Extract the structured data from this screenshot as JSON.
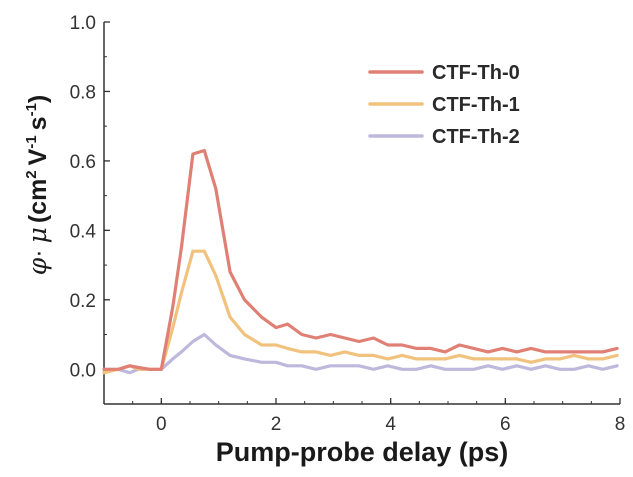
{
  "chart_data": {
    "type": "line",
    "xlabel": "Pump-probe delay (ps)",
    "ylabel": {
      "phi": "φ",
      "dot": "·",
      "mu": "μ",
      "open": "(",
      "cm": "cm",
      "cm_exp": "2",
      "v": "V",
      "v_exp": "-1",
      "s": "s",
      "s_exp": "-1",
      "close": ")"
    },
    "xlim": [
      -1,
      8
    ],
    "ylim": [
      -0.1,
      1.0
    ],
    "xticks": [
      0,
      2,
      4,
      6,
      8
    ],
    "yticks": [
      0.0,
      0.2,
      0.4,
      0.6,
      0.8,
      1.0
    ],
    "ytick_labels": [
      "0.0",
      "0.2",
      "0.4",
      "0.6",
      "0.8",
      "1.0"
    ],
    "legend_position": "top-right",
    "grid": false,
    "series": [
      {
        "name": "CTF-Th-0",
        "color": "#e08074",
        "x": [
          -1,
          -0.75,
          -0.55,
          -0.4,
          -0.2,
          0,
          0.2,
          0.35,
          0.55,
          0.75,
          0.95,
          1.2,
          1.45,
          1.75,
          2,
          2.2,
          2.45,
          2.7,
          2.95,
          3.2,
          3.45,
          3.7,
          3.95,
          4.2,
          4.45,
          4.7,
          4.95,
          5.2,
          5.45,
          5.7,
          5.95,
          6.2,
          6.45,
          6.7,
          6.95,
          7.2,
          7.45,
          7.7,
          7.95
        ],
        "y": [
          0.0,
          0.0,
          0.01,
          0.005,
          0.0,
          0.0,
          0.18,
          0.35,
          0.62,
          0.63,
          0.52,
          0.28,
          0.2,
          0.15,
          0.12,
          0.13,
          0.1,
          0.09,
          0.1,
          0.09,
          0.08,
          0.09,
          0.07,
          0.07,
          0.06,
          0.06,
          0.05,
          0.07,
          0.06,
          0.05,
          0.06,
          0.05,
          0.06,
          0.05,
          0.05,
          0.05,
          0.05,
          0.05,
          0.06
        ]
      },
      {
        "name": "CTF-Th-1",
        "color": "#f0c27e",
        "x": [
          -1,
          -0.75,
          -0.55,
          -0.4,
          -0.2,
          0,
          0.2,
          0.35,
          0.55,
          0.75,
          0.95,
          1.2,
          1.45,
          1.75,
          2,
          2.2,
          2.45,
          2.7,
          2.95,
          3.2,
          3.45,
          3.7,
          3.95,
          4.2,
          4.45,
          4.7,
          4.95,
          5.2,
          5.45,
          5.7,
          5.95,
          6.2,
          6.45,
          6.7,
          6.95,
          7.2,
          7.45,
          7.7,
          7.95
        ],
        "y": [
          -0.01,
          0.0,
          0.01,
          0.0,
          0.0,
          0.0,
          0.12,
          0.22,
          0.34,
          0.34,
          0.27,
          0.15,
          0.1,
          0.07,
          0.07,
          0.06,
          0.05,
          0.05,
          0.04,
          0.05,
          0.04,
          0.04,
          0.03,
          0.04,
          0.03,
          0.03,
          0.03,
          0.04,
          0.03,
          0.03,
          0.03,
          0.03,
          0.02,
          0.03,
          0.03,
          0.04,
          0.03,
          0.03,
          0.04
        ]
      },
      {
        "name": "CTF-Th-2",
        "color": "#bdb8dc",
        "x": [
          -1,
          -0.75,
          -0.55,
          -0.4,
          -0.2,
          0,
          0.2,
          0.35,
          0.55,
          0.75,
          0.95,
          1.2,
          1.45,
          1.75,
          2,
          2.2,
          2.45,
          2.7,
          2.95,
          3.2,
          3.45,
          3.7,
          3.95,
          4.2,
          4.45,
          4.7,
          4.95,
          5.2,
          5.45,
          5.7,
          5.95,
          6.2,
          6.45,
          6.7,
          6.95,
          7.2,
          7.45,
          7.7,
          7.95
        ],
        "y": [
          0.0,
          0.0,
          -0.01,
          0.0,
          0.0,
          0.0,
          0.03,
          0.05,
          0.08,
          0.1,
          0.07,
          0.04,
          0.03,
          0.02,
          0.02,
          0.01,
          0.01,
          0.0,
          0.01,
          0.01,
          0.01,
          0.0,
          0.01,
          0.0,
          0.0,
          0.01,
          0.0,
          0.0,
          0.0,
          0.01,
          0.0,
          0.01,
          0.0,
          0.01,
          0.0,
          0.0,
          0.01,
          0.0,
          0.01
        ]
      }
    ]
  }
}
